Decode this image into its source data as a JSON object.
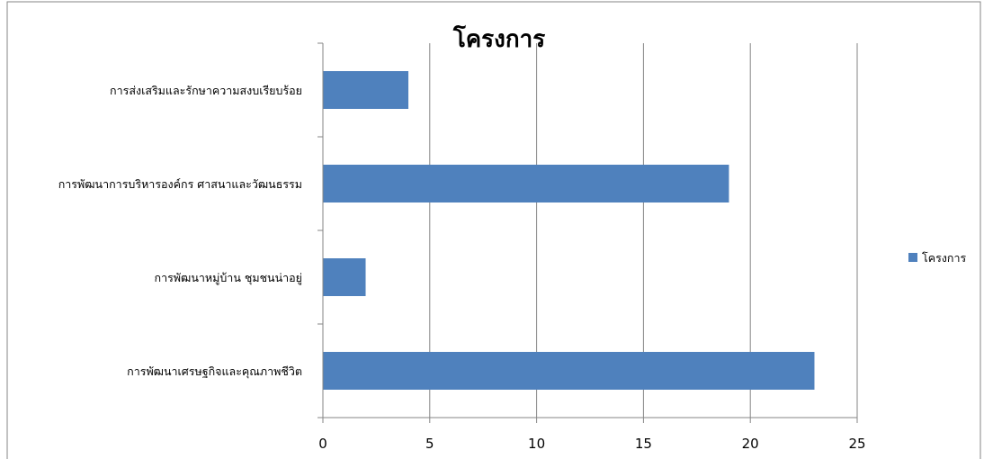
{
  "chart_data": {
    "type": "bar",
    "orientation": "horizontal",
    "title": "โครงการ",
    "xlabel": "",
    "ylabel": "",
    "categories": [
      "การส่งเสริมและรักษาความสงบเรียบร้อย",
      "การพัฒนาการบริหารองค์กร ศาสนาและวัฒนธรรม",
      "การพัฒนาหมู่บ้าน ชุมชนน่าอยู่",
      "การพัฒนาเศรษฐกิจและคุณภาพชีวิต"
    ],
    "series": [
      {
        "name": "โครงการ",
        "values": [
          4,
          19,
          2,
          23
        ],
        "color": "#4f81bd"
      }
    ],
    "xlim": [
      0,
      25
    ],
    "xticks": [
      "0",
      "5",
      "10",
      "15",
      "20",
      "25"
    ],
    "grid": "vertical major gridlines",
    "legend": "right"
  }
}
